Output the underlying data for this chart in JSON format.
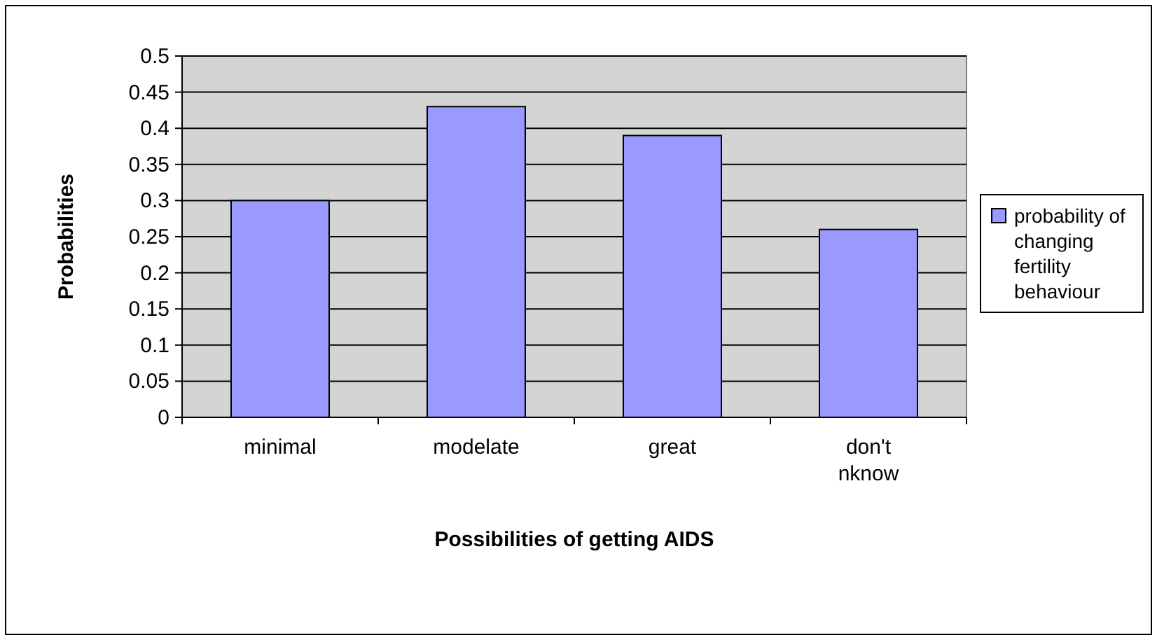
{
  "chart_data": {
    "type": "bar",
    "xlabel": "Possibilities of getting AIDS",
    "ylabel": "Probabilities",
    "categories": [
      "minimal",
      "modelate",
      "great",
      "don't nknow"
    ],
    "series": [
      {
        "name": "probability of changing fertility behaviour",
        "color": "#9999ff",
        "values": [
          0.3,
          0.43,
          0.39,
          0.26
        ]
      }
    ],
    "ylim": [
      0,
      0.5
    ],
    "yticks": [
      0,
      0.05,
      0.1,
      0.15,
      0.2,
      0.25,
      0.3,
      0.35,
      0.4,
      0.45,
      0.5
    ],
    "grid": "y",
    "legend": "right"
  }
}
